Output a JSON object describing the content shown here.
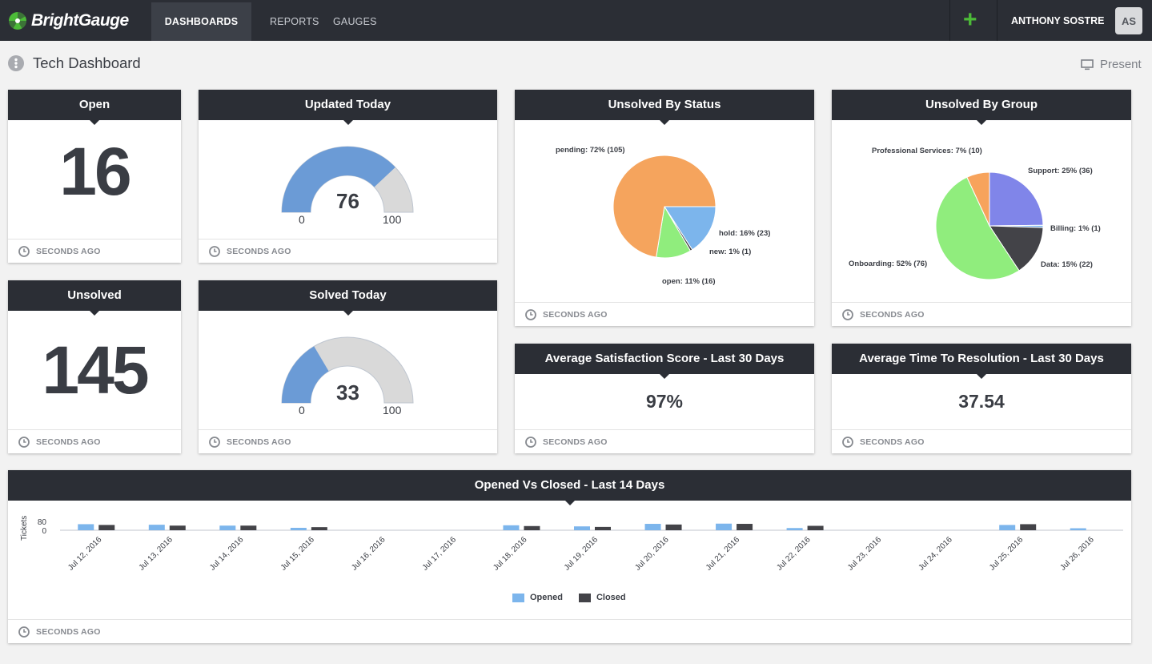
{
  "app": {
    "logo_text": "BrightGauge",
    "nav": [
      "DASHBOARDS",
      "REPORTS",
      "GAUGES"
    ],
    "user_name": "ANTHONY SOSTRE",
    "user_initials": "AS",
    "add_label": "+"
  },
  "page": {
    "title": "Tech Dashboard",
    "present_label": "Present"
  },
  "footer_text": "SECONDS AGO",
  "cards": {
    "open": {
      "title": "Open",
      "value": "16"
    },
    "updated_today": {
      "title": "Updated Today",
      "value": 76,
      "min": "0",
      "max": "100",
      "value_label": "76"
    },
    "unsolved": {
      "title": "Unsolved",
      "value": "145"
    },
    "solved_today": {
      "title": "Solved Today",
      "value": 33,
      "min": "0",
      "max": "100",
      "value_label": "33"
    },
    "unsolved_by_status": {
      "title": "Unsolved By Status",
      "slices": [
        {
          "label": "pending: 72% (105)",
          "value": 105,
          "color": "#f5a45d"
        },
        {
          "label": "hold: 16% (23)",
          "value": 23,
          "color": "#7cb5ec"
        },
        {
          "label": "new: 1% (1)",
          "value": 1,
          "color": "#434348"
        },
        {
          "label": "open: 11% (16)",
          "value": 16,
          "color": "#90ed7d"
        }
      ]
    },
    "unsolved_by_group": {
      "title": "Unsolved By Group",
      "slices": [
        {
          "label": "Support: 25% (36)",
          "value": 36,
          "color": "#8085e9"
        },
        {
          "label": "Billing: 1% (1)",
          "value": 1,
          "color": "#7cb5ec"
        },
        {
          "label": "Data: 15% (22)",
          "value": 22,
          "color": "#434348"
        },
        {
          "label": "Onboarding: 52% (76)",
          "value": 76,
          "color": "#90ed7d"
        },
        {
          "label": "Professional Services: 7% (10)",
          "value": 10,
          "color": "#f7a35c"
        }
      ]
    },
    "avg_satisfaction": {
      "title": "Average Satisfaction Score - Last 30 Days",
      "value": "97%"
    },
    "avg_resolution": {
      "title": "Average Time To Resolution - Last 30 Days",
      "value": "37.54"
    }
  },
  "chart_data": {
    "type": "bar",
    "title": "Opened Vs Closed - Last 14 Days",
    "ylabel": "Tickets",
    "ytick_labels": [
      "0",
      "80"
    ],
    "ylim": [
      0,
      80
    ],
    "categories": [
      "Jul 12, 2016",
      "Jul 13, 2016",
      "Jul 14, 2016",
      "Jul 15, 2016",
      "Jul 16, 2016",
      "Jul 17, 2016",
      "Jul 18, 2016",
      "Jul 19, 2016",
      "Jul 20, 2016",
      "Jul 21, 2016",
      "Jul 22, 2016",
      "Jul 23, 2016",
      "Jul 24, 2016",
      "Jul 25, 2016",
      "Jul 26, 2016"
    ],
    "series": [
      {
        "name": "Opened",
        "color": "#7cb5ec",
        "values": [
          55,
          50,
          42,
          22,
          0,
          0,
          45,
          35,
          58,
          60,
          20,
          0,
          0,
          48,
          18
        ]
      },
      {
        "name": "Closed",
        "color": "#434348",
        "values": [
          48,
          42,
          42,
          28,
          0,
          0,
          38,
          30,
          52,
          58,
          40,
          0,
          0,
          55,
          0
        ]
      }
    ],
    "legend": "bottom-center",
    "grid": false
  }
}
